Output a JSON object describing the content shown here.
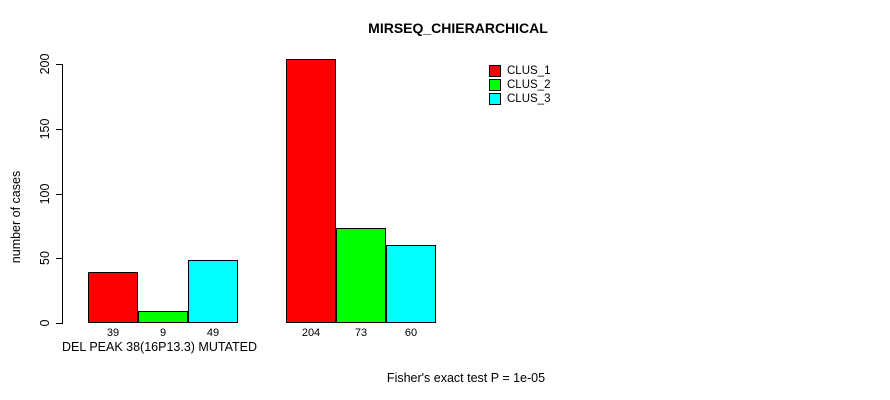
{
  "chart_data": {
    "type": "bar",
    "title": "MIRSEQ_CHIERARCHICAL",
    "ylabel": "number of cases",
    "xlabel": "DEL PEAK 38(16P13.3) MUTATED",
    "ylim": [
      0,
      200
    ],
    "yticks": [
      0,
      50,
      100,
      150,
      200
    ],
    "categories": [
      "DEL PEAK 38(16P13.3) MUTATED",
      ""
    ],
    "series": [
      {
        "name": "CLUS_1",
        "color": "#FF0000",
        "values": [
          39,
          204
        ]
      },
      {
        "name": "CLUS_2",
        "color": "#00FF00",
        "values": [
          9,
          73
        ]
      },
      {
        "name": "CLUS_3",
        "color": "#00FFFF",
        "values": [
          49,
          60
        ]
      }
    ],
    "bar_border_color": "#000000",
    "annotation": "Fisher's exact test P = 1e-05",
    "legend_position": "top-right",
    "grid": false
  }
}
